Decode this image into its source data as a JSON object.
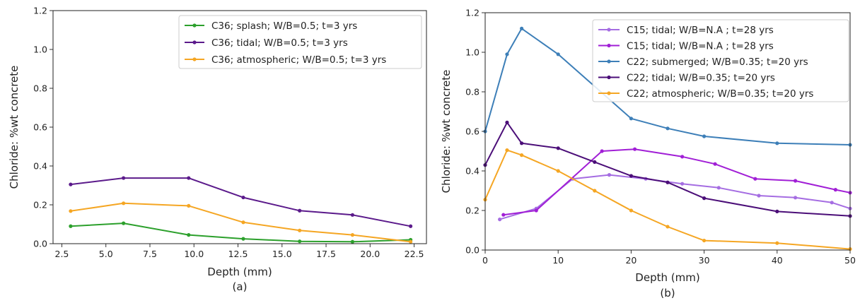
{
  "chart_data": [
    {
      "type": "line",
      "caption": "(a)",
      "xlabel": "Depth (mm)",
      "ylabel": "Chloride: %wt concrete",
      "xlim": [
        2.0,
        23.2
      ],
      "ylim": [
        0.0,
        1.2
      ],
      "xticks": [
        "2.5",
        "5.0",
        "7.5",
        "10.0",
        "12.5",
        "15.0",
        "17.5",
        "20.0",
        "22.5"
      ],
      "yticks": [
        "0.0",
        "0.2",
        "0.4",
        "0.6",
        "0.8",
        "1.0",
        "1.2"
      ],
      "legend_position": "top-right",
      "series": [
        {
          "name": "C36; splash; W/B=0.5; t=3 yrs",
          "color": "#2ca02c",
          "x": [
            3,
            6,
            9.7,
            12.8,
            16,
            19,
            22.3
          ],
          "y": [
            0.09,
            0.105,
            0.045,
            0.025,
            0.012,
            0.01,
            0.02
          ]
        },
        {
          "name": "C36; tidal; W/B=0.5; t=3 yrs",
          "color": "#5b1a8b",
          "x": [
            3,
            6,
            9.7,
            12.8,
            16,
            19,
            22.3
          ],
          "y": [
            0.305,
            0.338,
            0.338,
            0.238,
            0.17,
            0.148,
            0.09
          ]
        },
        {
          "name": "C36; atmospheric; W/B=0.5; t=3 yrs",
          "color": "#f5a623",
          "x": [
            3,
            6,
            9.7,
            12.8,
            16,
            19,
            22.3
          ],
          "y": [
            0.168,
            0.208,
            0.195,
            0.11,
            0.068,
            0.045,
            0.01
          ]
        }
      ]
    },
    {
      "type": "line",
      "caption": "(b)",
      "xlabel": "Depth (mm)",
      "ylabel": "Chloride: %wt concrete",
      "xlim": [
        0,
        50
      ],
      "ylim": [
        0.0,
        1.2
      ],
      "xticks": [
        "0",
        "10",
        "20",
        "30",
        "40",
        "50"
      ],
      "yticks": [
        "0.0",
        "0.2",
        "0.4",
        "0.6",
        "0.8",
        "1.0",
        "1.2"
      ],
      "legend_position": "top-right",
      "series": [
        {
          "name": "C15; tidal; W/B=N.A ; t=28 yrs",
          "color": "#a56de2",
          "x": [
            2,
            7,
            12,
            17,
            22,
            27,
            32,
            37.5,
            42.5,
            47.5,
            50
          ],
          "y": [
            0.155,
            0.21,
            0.36,
            0.38,
            0.36,
            0.335,
            0.315,
            0.275,
            0.265,
            0.24,
            0.21
          ]
        },
        {
          "name": "C15; tidal; W/B=N.A ; t=28 yrs",
          "color": "#a11fd6",
          "x": [
            2.5,
            7,
            16,
            20.5,
            27,
            31.5,
            37,
            42.5,
            48,
            50
          ],
          "y": [
            0.178,
            0.2,
            0.5,
            0.51,
            0.472,
            0.435,
            0.36,
            0.35,
            0.305,
            0.29
          ]
        },
        {
          "name": "C22; submerged; W/B=0.35; t=20 yrs",
          "color": "#3d7fb8",
          "x": [
            0,
            3,
            5,
            10,
            20,
            25,
            30,
            40,
            50
          ],
          "y": [
            0.6,
            0.99,
            1.12,
            0.99,
            0.665,
            0.615,
            0.575,
            0.54,
            0.532
          ]
        },
        {
          "name": "C22; tidal; W/B=0.35; t=20 yrs",
          "color": "#4b0e78",
          "x": [
            0,
            3,
            5,
            10,
            15,
            20,
            25,
            30,
            40,
            50
          ],
          "y": [
            0.43,
            0.645,
            0.54,
            0.515,
            0.445,
            0.375,
            0.342,
            0.262,
            0.195,
            0.172
          ]
        },
        {
          "name": "C22; atmospheric; W/B=0.35; t=20 yrs",
          "color": "#f5a623",
          "x": [
            0,
            3,
            5,
            10,
            15,
            20,
            25,
            30,
            40,
            50
          ],
          "y": [
            0.255,
            0.505,
            0.48,
            0.4,
            0.3,
            0.2,
            0.118,
            0.048,
            0.035,
            0.005
          ]
        }
      ]
    }
  ]
}
